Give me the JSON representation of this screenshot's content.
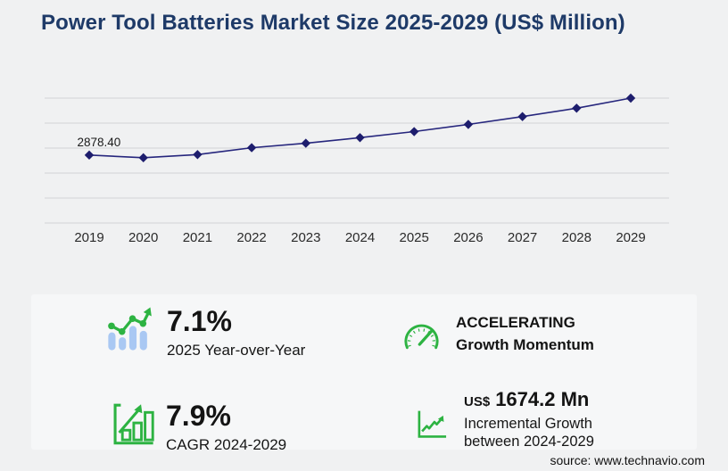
{
  "header": {
    "title": "Power Tool Batteries Market Size 2025-2029 (US$ Million)"
  },
  "chart_data": {
    "type": "line",
    "title": "Power Tool Batteries Market Size 2025-2029 (US$ Million)",
    "categories": [
      "2019",
      "2020",
      "2021",
      "2022",
      "2023",
      "2024",
      "2025",
      "2026",
      "2027",
      "2028",
      "2029"
    ],
    "values": [
      2878.4,
      2765,
      2900,
      3190,
      3380,
      3617,
      3874,
      4177,
      4510,
      4865,
      5292
    ],
    "first_point_label": "2878.40",
    "xlabel": "",
    "ylabel": "",
    "ylim": [
      0,
      5292
    ],
    "gridline_count": 6,
    "grid": true,
    "legend": false,
    "marker": "diamond",
    "line_color": "#26267d",
    "marker_color": "#1d1d6d",
    "grid_color": "#d2d3d5",
    "axis_label_color": "#2a2a2a",
    "point_label_color": "#1a1a1a"
  },
  "stats": {
    "yoy": {
      "value": "7.1%",
      "label": "2025 Year-over-Year"
    },
    "momentum": {
      "line1": "ACCELERATING",
      "line2": "Growth Momentum"
    },
    "cagr": {
      "value": "7.9%",
      "label": "CAGR 2024-2029"
    },
    "incremental": {
      "currency": "US$",
      "value": "1674.2 Mn",
      "label_line1": "Incremental Growth",
      "label_line2": "between 2024-2029"
    }
  },
  "source": {
    "label": "source: www.technavio.com"
  },
  "colors": {
    "accent_green": "#2db342",
    "bar_blue": "#a9c8f3",
    "title_navy": "#1e3a68",
    "line_navy": "#26267d"
  }
}
